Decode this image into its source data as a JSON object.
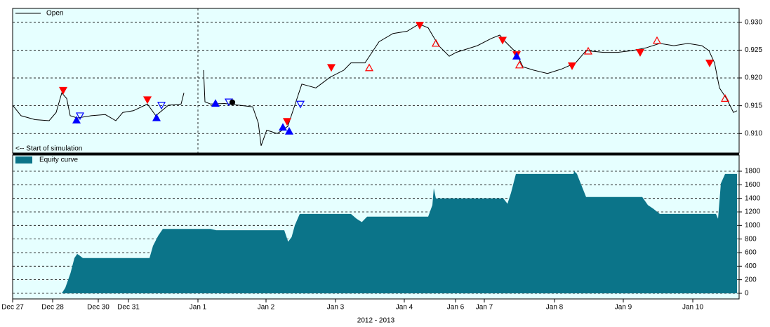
{
  "chart_data": [
    {
      "type": "line",
      "legend_loc": "upper left",
      "xlim": [
        0,
        207
      ],
      "ylim": [
        0.9065,
        0.9325
      ],
      "yticks": [
        {
          "value": 0.91,
          "label": "0.910"
        },
        0.915,
        {
          "value": 0.92,
          "label": "0.920"
        },
        0.925,
        {
          "value": 0.93,
          "label": "0.930"
        }
      ],
      "grid": true,
      "annotation": {
        "text": "<-- Start of simulation",
        "x": 52.8
      },
      "x": [
        0,
        2.4,
        6.4,
        10.4,
        12.4,
        14,
        15.4,
        16.4,
        18.4,
        22.4,
        26.4,
        29.4,
        31.4,
        34.4,
        38.4,
        40.8,
        44.4,
        48,
        48.8,
        50,
        54.4,
        54.8,
        56.4,
        60.4,
        64.4,
        68.4,
        70,
        70.8,
        72.4,
        75.4,
        78.4,
        80.4,
        82.4,
        86.4,
        90.4,
        94.4,
        96.4,
        100.4,
        104.4,
        108.4,
        112.4,
        115.8,
        118.4,
        121.4,
        124.4,
        126.4,
        132.4,
        136.4,
        138.8,
        140.4,
        143.4,
        145.4,
        148.4,
        152.4,
        156.4,
        160.4,
        163.4,
        168.4,
        172.4,
        176.4,
        180.4,
        184.4,
        188.4,
        192.4,
        196.4,
        198.4,
        200,
        201.4,
        203.4,
        205.4,
        206.4
      ],
      "series": [
        {
          "name": "Open",
          "color": "#000000",
          "values": [
            0.9151,
            0.9132,
            0.9125,
            0.9123,
            0.9138,
            0.9173,
            0.9163,
            0.9132,
            0.9128,
            0.9132,
            0.9134,
            0.9123,
            0.9138,
            0.9141,
            0.9153,
            0.9132,
            0.9151,
            0.9153,
            0.9173,
            null,
            0.9214,
            0.9157,
            0.9153,
            0.9154,
            0.9151,
            0.9148,
            0.9119,
            0.9078,
            0.9106,
            0.91,
            0.9113,
            0.9151,
            0.9189,
            0.9182,
            0.9201,
            0.9214,
            0.9227,
            0.9227,
            0.9265,
            0.928,
            0.9284,
            0.9297,
            0.929,
            0.9258,
            0.9239,
            0.9246,
            0.9258,
            0.9271,
            0.9277,
            0.9265,
            0.9246,
            0.922,
            0.9214,
            0.9208,
            0.9216,
            0.9227,
            0.9249,
            0.9246,
            0.9246,
            0.9249,
            0.9254,
            0.9262,
            0.9258,
            0.9262,
            0.9258,
            0.9249,
            0.9227,
            0.9182,
            0.9163,
            0.9138,
            0.9141
          ]
        }
      ],
      "markers": [
        {
          "x": 14.4,
          "y": 0.9178,
          "color": "#ff0000",
          "shape": "down",
          "filled": true
        },
        {
          "x": 38.4,
          "y": 0.9161,
          "color": "#ff0000",
          "shape": "down",
          "filled": true
        },
        {
          "x": 78.2,
          "y": 0.9122,
          "color": "#ff0000",
          "shape": "down",
          "filled": true
        },
        {
          "x": 90.8,
          "y": 0.9219,
          "color": "#ff0000",
          "shape": "down",
          "filled": true
        },
        {
          "x": 116,
          "y": 0.9295,
          "color": "#ff0000",
          "shape": "down",
          "filled": true
        },
        {
          "x": 139.6,
          "y": 0.9268,
          "color": "#ff0000",
          "shape": "down",
          "filled": true
        },
        {
          "x": 143.6,
          "y": 0.9242,
          "color": "#ff0000",
          "shape": "down",
          "filled": true
        },
        {
          "x": 159.4,
          "y": 0.9222,
          "color": "#ff0000",
          "shape": "down",
          "filled": true
        },
        {
          "x": 178.8,
          "y": 0.9246,
          "color": "#ff0000",
          "shape": "down",
          "filled": true
        },
        {
          "x": 198.6,
          "y": 0.9227,
          "color": "#ff0000",
          "shape": "down",
          "filled": true
        },
        {
          "x": 18.2,
          "y": 0.9124,
          "color": "#0000ff",
          "shape": "up",
          "filled": true
        },
        {
          "x": 41,
          "y": 0.9128,
          "color": "#0000ff",
          "shape": "up",
          "filled": true
        },
        {
          "x": 57.8,
          "y": 0.9154,
          "color": "#0000ff",
          "shape": "up",
          "filled": true
        },
        {
          "x": 77,
          "y": 0.9111,
          "color": "#0000ff",
          "shape": "up",
          "filled": true
        },
        {
          "x": 78.8,
          "y": 0.9104,
          "color": "#0000ff",
          "shape": "up",
          "filled": true
        },
        {
          "x": 143.6,
          "y": 0.9239,
          "color": "#0000ff",
          "shape": "up",
          "filled": true
        },
        {
          "x": 19.2,
          "y": 0.9132,
          "color": "#0000ff",
          "shape": "down",
          "filled": false
        },
        {
          "x": 42.4,
          "y": 0.9151,
          "color": "#0000ff",
          "shape": "down",
          "filled": false
        },
        {
          "x": 82,
          "y": 0.9153,
          "color": "#0000ff",
          "shape": "down",
          "filled": false
        },
        {
          "x": 61.6,
          "y": 0.9157,
          "color": "#0000ff",
          "shape": "down",
          "filled": false
        },
        {
          "x": 101.6,
          "y": 0.9218,
          "color": "#ff0000",
          "shape": "up",
          "filled": false
        },
        {
          "x": 120.6,
          "y": 0.9262,
          "color": "#ff0000",
          "shape": "up",
          "filled": false
        },
        {
          "x": 144.4,
          "y": 0.9223,
          "color": "#ff0000",
          "shape": "up",
          "filled": false
        },
        {
          "x": 164,
          "y": 0.9248,
          "color": "#ff0000",
          "shape": "up",
          "filled": false
        },
        {
          "x": 183.6,
          "y": 0.9267,
          "color": "#ff0000",
          "shape": "up",
          "filled": false
        },
        {
          "x": 203,
          "y": 0.9163,
          "color": "#ff0000",
          "shape": "up",
          "filled": false
        },
        {
          "x": 62.6,
          "y": 0.9156,
          "color": "#000000",
          "shape": "dot",
          "filled": true
        }
      ]
    },
    {
      "type": "area",
      "legend_loc": "upper left",
      "xlim": [
        0,
        207
      ],
      "ylim": [
        -83,
        2038
      ],
      "yticks": [
        0,
        200,
        400,
        600,
        800,
        1000,
        1200,
        1400,
        1600,
        1800
      ],
      "grid": true,
      "xlabel": "2012 - 2013",
      "xticks": [
        {
          "value": 0,
          "label": "Dec 27"
        },
        {
          "value": 11.4,
          "label": "Dec 28"
        },
        {
          "value": 24.4,
          "label": "Dec 30"
        },
        {
          "value": 33,
          "label": "Dec 31"
        },
        {
          "value": 52.8,
          "label": "Jan 1"
        },
        {
          "value": 72.2,
          "label": "Jan 2"
        },
        {
          "value": 92,
          "label": "Jan 3"
        },
        {
          "value": 111.6,
          "label": "Jan 4"
        },
        {
          "value": 126.2,
          "label": "Jan 6"
        },
        {
          "value": 134.4,
          "label": "Jan 7"
        },
        {
          "value": 154.4,
          "label": "Jan 8"
        },
        {
          "value": 174,
          "label": "Jan 9"
        },
        {
          "value": 193.8,
          "label": "Jan 10"
        }
      ],
      "x": [
        0,
        14,
        15,
        16.5,
        17.6,
        18.4,
        19,
        20,
        39,
        40,
        41.5,
        42.8,
        56.4,
        58,
        77.4,
        78.5,
        79.5,
        80.4,
        81.8,
        96.4,
        98,
        99.5,
        101,
        118.4,
        119.6,
        120,
        120.6,
        139.8,
        141,
        142,
        143.4,
        159.8,
        160,
        160.8,
        161.4,
        163.4,
        179.4,
        181,
        182.5,
        184.4,
        200.4,
        201,
        201.8,
        203,
        206.4
      ],
      "series": [
        {
          "name": "Equity curve",
          "color": "#0b7489",
          "values": [
            0,
            0,
            80,
            300,
            520,
            580,
            560,
            520,
            520,
            700,
            850,
            950,
            950,
            930,
            930,
            760,
            830,
            1000,
            1170,
            1170,
            1100,
            1050,
            1130,
            1130,
            1300,
            1550,
            1400,
            1400,
            1320,
            1480,
            1760,
            1760,
            1800,
            1760,
            1680,
            1420,
            1420,
            1300,
            1250,
            1170,
            1170,
            1100,
            1620,
            1760,
            1760
          ]
        }
      ]
    }
  ]
}
